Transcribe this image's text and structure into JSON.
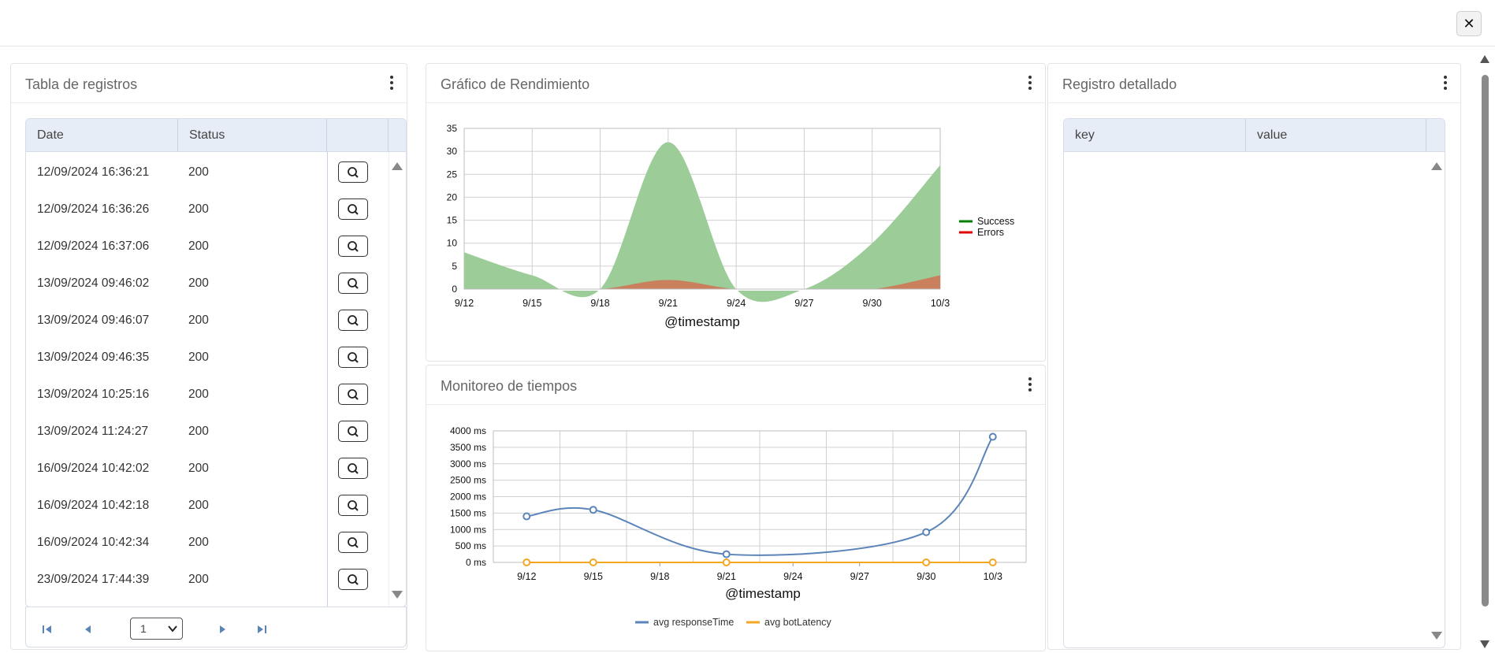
{
  "window": {
    "close_glyph": "✕"
  },
  "records_panel": {
    "title": "Tabla de registros",
    "columns": [
      "Date",
      "Status",
      ""
    ],
    "rows": [
      {
        "date": "12/09/2024 16:36:21",
        "status": "200"
      },
      {
        "date": "12/09/2024 16:36:26",
        "status": "200"
      },
      {
        "date": "12/09/2024 16:37:06",
        "status": "200"
      },
      {
        "date": "13/09/2024 09:46:02",
        "status": "200"
      },
      {
        "date": "13/09/2024 09:46:07",
        "status": "200"
      },
      {
        "date": "13/09/2024 09:46:35",
        "status": "200"
      },
      {
        "date": "13/09/2024 10:25:16",
        "status": "200"
      },
      {
        "date": "13/09/2024 11:24:27",
        "status": "200"
      },
      {
        "date": "16/09/2024 10:42:02",
        "status": "200"
      },
      {
        "date": "16/09/2024 10:42:18",
        "status": "200"
      },
      {
        "date": "16/09/2024 10:42:34",
        "status": "200"
      },
      {
        "date": "23/09/2024 17:44:39",
        "status": "200"
      }
    ],
    "pager": {
      "page": "1"
    }
  },
  "performance_panel": {
    "title": "Gráfico de Rendimiento"
  },
  "times_panel": {
    "title": "Monitoreo de tiempos"
  },
  "detail_panel": {
    "title": "Registro detallado",
    "columns": [
      "key",
      "value"
    ]
  },
  "chart_data": [
    {
      "type": "area",
      "title": "Gráfico de Rendimiento",
      "xlabel": "@timestamp",
      "ylabel": "",
      "x": [
        "9/12",
        "9/15",
        "9/18",
        "9/21",
        "9/24",
        "9/27",
        "9/30",
        "10/3"
      ],
      "yticks": [
        "0",
        "5",
        "10",
        "15",
        "20",
        "25",
        "30",
        "35"
      ],
      "ylim": [
        0,
        35
      ],
      "grid": true,
      "legend_position": "right",
      "series": [
        {
          "name": "Success",
          "color": "#008000",
          "fill": "#9ccc97",
          "values": [
            8,
            3,
            0,
            32,
            0,
            0,
            10,
            27
          ]
        },
        {
          "name": "Errors",
          "color": "#e00000",
          "fill": "#cc7a5a",
          "values": [
            0,
            0,
            0,
            2,
            0,
            0,
            0,
            3
          ]
        }
      ]
    },
    {
      "type": "line",
      "title": "Monitoreo de tiempos",
      "xlabel": "@timestamp",
      "ylabel": "",
      "x": [
        "9/12",
        "9/15",
        "9/18",
        "9/21",
        "9/24",
        "9/27",
        "9/30",
        "10/3"
      ],
      "yticks": [
        "0 ms",
        "500 ms",
        "1000 ms",
        "1500 ms",
        "2000 ms",
        "2500 ms",
        "3000 ms",
        "3500 ms",
        "4000 ms"
      ],
      "ylim": [
        0,
        4000
      ],
      "grid": true,
      "legend_position": "bottom",
      "series": [
        {
          "name": "avg responseTime",
          "color": "#5b84b8",
          "points": [
            [
              0,
              1400
            ],
            [
              1,
              1600
            ],
            [
              3,
              250
            ],
            [
              6,
              920
            ],
            [
              7,
              3820
            ]
          ]
        },
        {
          "name": "avg botLatency",
          "color": "#f5a623",
          "points": [
            [
              0,
              0
            ],
            [
              1,
              0
            ],
            [
              3,
              0
            ],
            [
              6,
              0
            ],
            [
              7,
              0
            ]
          ]
        }
      ]
    }
  ]
}
